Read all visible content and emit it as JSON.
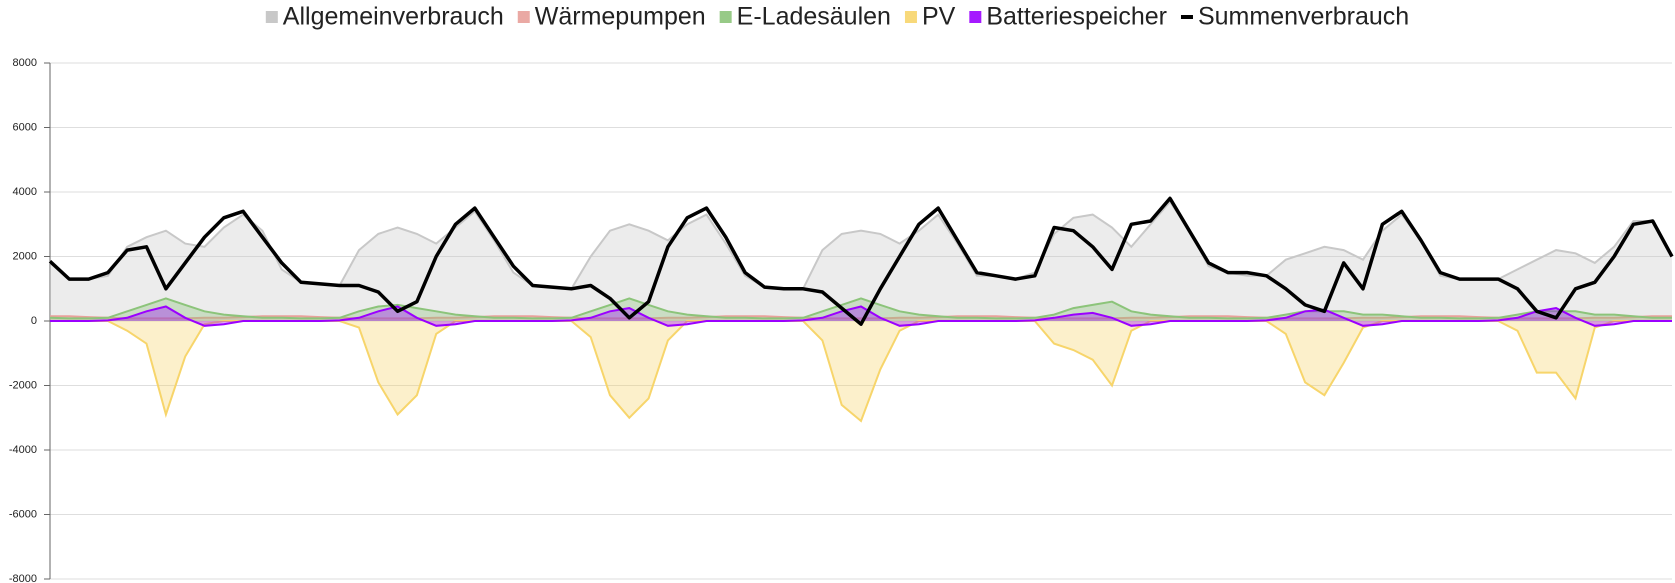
{
  "chart_data": {
    "type": "area",
    "ylim": [
      -8000,
      8000
    ],
    "yticks": [
      -8000,
      -6000,
      -4000,
      -2000,
      0,
      2000,
      4000,
      6000,
      8000
    ],
    "grid": true,
    "legend": "top",
    "series": [
      {
        "name": "Allgemeinverbrauch",
        "color": "#c8c8c8",
        "type": "area",
        "values": [
          1800,
          1300,
          1300,
          1400,
          2300,
          2600,
          2800,
          2400,
          2300,
          2900,
          3300,
          2800,
          1600,
          1200,
          1150,
          1100,
          2200,
          2700,
          2900,
          2700,
          2400,
          2900,
          3400,
          2500,
          1500,
          1100,
          1050,
          1000,
          2000,
          2800,
          3000,
          2800,
          2500,
          3000,
          3300,
          2400,
          1400,
          1050,
          1000,
          1000,
          2200,
          2700,
          2800,
          2700,
          2400,
          2800,
          3300,
          2400,
          1400,
          1400,
          1300,
          1500,
          2700,
          3200,
          3300,
          2900,
          2300,
          3000,
          3700,
          2800,
          1700,
          1500,
          1400,
          1400,
          1900,
          2100,
          2300,
          2200,
          1900,
          2800,
          3300,
          2500,
          1400,
          1300,
          1300,
          1300,
          1600,
          1900,
          2200,
          2100,
          1800,
          2300,
          3100,
          3100,
          2000
        ]
      },
      {
        "name": "Wärmepumpen",
        "color": "#e8a09a",
        "type": "area",
        "values": [
          150,
          150,
          120,
          100,
          80,
          80,
          80,
          80,
          100,
          100,
          120,
          150,
          150,
          150,
          120,
          100,
          80,
          80,
          80,
          80,
          100,
          100,
          120,
          150,
          150,
          150,
          120,
          100,
          80,
          80,
          80,
          80,
          100,
          100,
          120,
          150,
          150,
          150,
          120,
          100,
          80,
          80,
          80,
          80,
          100,
          100,
          120,
          150,
          150,
          150,
          120,
          100,
          80,
          80,
          80,
          80,
          100,
          100,
          120,
          150,
          150,
          150,
          120,
          100,
          80,
          80,
          80,
          80,
          100,
          100,
          120,
          150,
          150,
          150,
          120,
          100,
          80,
          80,
          80,
          80,
          100,
          100,
          120,
          150,
          150
        ]
      },
      {
        "name": "E-Ladesäulen",
        "color": "#8cc47a",
        "type": "area",
        "values": [
          100,
          80,
          80,
          100,
          300,
          500,
          700,
          500,
          300,
          200,
          150,
          100,
          100,
          80,
          80,
          100,
          300,
          450,
          500,
          400,
          300,
          200,
          150,
          100,
          100,
          80,
          80,
          100,
          300,
          500,
          700,
          500,
          300,
          200,
          150,
          100,
          100,
          80,
          80,
          100,
          300,
          500,
          700,
          500,
          300,
          200,
          150,
          100,
          100,
          80,
          80,
          100,
          200,
          400,
          500,
          600,
          300,
          200,
          150,
          100,
          100,
          80,
          80,
          100,
          200,
          300,
          300,
          300,
          200,
          200,
          150,
          100,
          100,
          80,
          80,
          100,
          200,
          300,
          300,
          300,
          200,
          200,
          150,
          100,
          100
        ]
      },
      {
        "name": "PV",
        "color": "#f7d56b",
        "type": "area",
        "values": [
          0,
          0,
          0,
          0,
          -300,
          -700,
          -2900,
          -1100,
          -100,
          0,
          0,
          0,
          0,
          0,
          0,
          0,
          -200,
          -1900,
          -2900,
          -2300,
          -400,
          0,
          0,
          0,
          0,
          0,
          0,
          0,
          -500,
          -2300,
          -3000,
          -2400,
          -600,
          0,
          0,
          0,
          0,
          0,
          0,
          0,
          -600,
          -2600,
          -3100,
          -1500,
          -300,
          0,
          0,
          0,
          0,
          0,
          0,
          0,
          -700,
          -900,
          -1200,
          -2000,
          -300,
          0,
          0,
          0,
          0,
          0,
          0,
          0,
          -400,
          -1900,
          -2300,
          -1300,
          -200,
          0,
          0,
          0,
          0,
          0,
          0,
          0,
          -300,
          -1600,
          -1600,
          -2400,
          -200,
          0,
          0,
          0,
          0
        ]
      },
      {
        "name": "Batteriespeicher",
        "color": "#9b00ff",
        "type": "area",
        "values": [
          0,
          0,
          0,
          20,
          100,
          300,
          450,
          100,
          -150,
          -100,
          0,
          0,
          0,
          0,
          0,
          20,
          100,
          300,
          450,
          100,
          -150,
          -100,
          0,
          0,
          0,
          0,
          0,
          20,
          100,
          300,
          400,
          100,
          -150,
          -100,
          0,
          0,
          0,
          0,
          0,
          20,
          100,
          300,
          450,
          100,
          -150,
          -100,
          0,
          0,
          0,
          0,
          0,
          20,
          100,
          200,
          250,
          100,
          -150,
          -100,
          0,
          0,
          0,
          0,
          0,
          20,
          100,
          300,
          350,
          100,
          -150,
          -100,
          0,
          0,
          0,
          0,
          0,
          20,
          100,
          300,
          400,
          100,
          -150,
          -100,
          0,
          0,
          0
        ]
      },
      {
        "name": "Summenverbrauch",
        "color": "#000000",
        "type": "line",
        "values": [
          1850,
          1300,
          1300,
          1500,
          2200,
          2300,
          1000,
          1800,
          2600,
          3200,
          3400,
          2600,
          1800,
          1200,
          1150,
          1100,
          1100,
          900,
          300,
          600,
          2000,
          3000,
          3500,
          2600,
          1700,
          1100,
          1050,
          1000,
          1100,
          700,
          100,
          600,
          2300,
          3200,
          3500,
          2600,
          1500,
          1050,
          1000,
          1000,
          900,
          400,
          -100,
          1000,
          2000,
          3000,
          3500,
          2500,
          1500,
          1400,
          1300,
          1400,
          2900,
          2800,
          2300,
          1600,
          3000,
          3100,
          3800,
          2800,
          1800,
          1500,
          1500,
          1400,
          1000,
          500,
          300,
          1800,
          1000,
          3000,
          3400,
          2500,
          1500,
          1300,
          1300,
          1300,
          1000,
          300,
          100,
          1000,
          1200,
          2000,
          3000,
          3100,
          2000
        ]
      }
    ]
  }
}
